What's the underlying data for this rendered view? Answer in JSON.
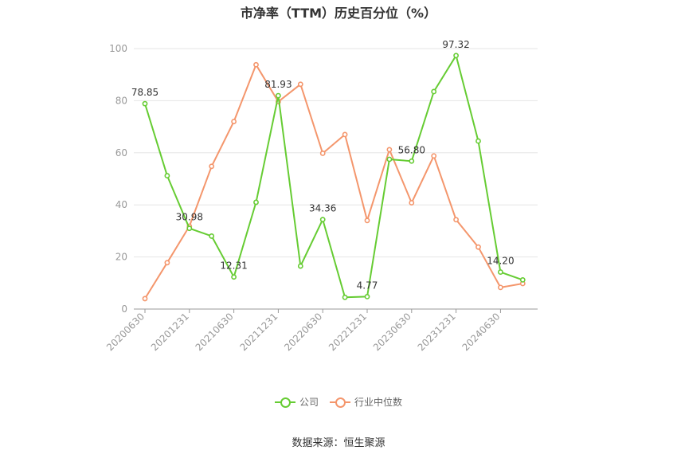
{
  "chart_data": {
    "type": "line",
    "title": "市净率（TTM）历史百分位（%）",
    "source": "数据来源：恒生聚源",
    "ylim": [
      0,
      100
    ],
    "yticks": [
      0,
      20,
      40,
      60,
      80,
      100
    ],
    "tick_labels": [
      "20200630",
      "20201231",
      "20210630",
      "20211231",
      "20220630",
      "20221231",
      "20230630",
      "20231231",
      "20240630"
    ],
    "tick_indices": [
      0,
      2,
      4,
      6,
      8,
      10,
      12,
      14,
      16
    ],
    "grid": true,
    "legend_position": "bottom",
    "x": [
      "20200630",
      "20200930",
      "20201231",
      "20210331",
      "20210630",
      "20210930",
      "20211231",
      "20220331",
      "20220630",
      "20220930",
      "20221231",
      "20230331",
      "20230630",
      "20230930",
      "20231231",
      "20240331",
      "20240630",
      "20240930"
    ],
    "series": [
      {
        "name": "公司",
        "color": "#66cc33",
        "values": [
          78.85,
          51.2,
          30.98,
          28.0,
          12.31,
          41.0,
          81.93,
          16.5,
          34.36,
          4.5,
          4.77,
          57.5,
          56.8,
          83.5,
          97.32,
          64.5,
          14.2,
          11.2
        ],
        "labels": [
          "78.85",
          "",
          "30.98",
          "",
          "12.31",
          "",
          "81.93",
          "",
          "34.36",
          "",
          "4.77",
          "",
          "56.80",
          "",
          "97.32",
          "",
          "14.20",
          ""
        ]
      },
      {
        "name": "行业中位数",
        "color": "#f4966c",
        "values": [
          4.0,
          17.8,
          31.8,
          54.8,
          72.0,
          93.8,
          79.6,
          86.3,
          59.8,
          67.0,
          34.0,
          61.2,
          40.8,
          58.8,
          34.3,
          23.8,
          8.3,
          9.8
        ]
      }
    ]
  }
}
